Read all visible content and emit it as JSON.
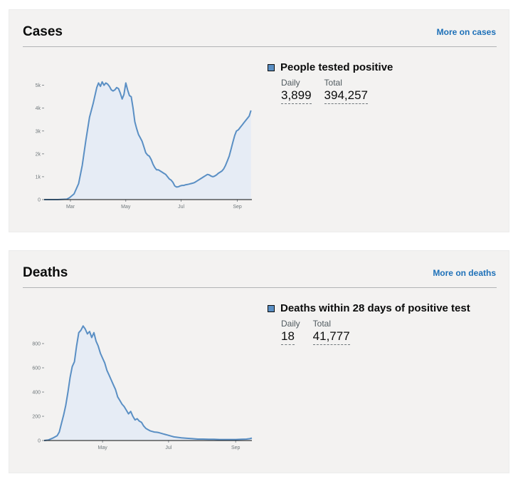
{
  "cases": {
    "title": "Cases",
    "more_link": "More on cases",
    "metric_title": "People tested positive",
    "daily_label": "Daily",
    "daily_value": "3,899",
    "total_label": "Total",
    "total_value": "394,257"
  },
  "deaths": {
    "title": "Deaths",
    "more_link": "More on deaths",
    "metric_title": "Deaths within 28 days of positive test",
    "daily_label": "Daily",
    "daily_value": "18",
    "total_label": "Total",
    "total_value": "41,777"
  },
  "colors": {
    "line": "#5a8fc4",
    "fill": "#e6ecf5",
    "axis": "#0b0c0c"
  },
  "chart_data": [
    {
      "type": "area",
      "title": "",
      "series": [
        {
          "name": "People tested positive"
        }
      ],
      "x_ticks": [
        {
          "label": "Mar",
          "day": 1
        },
        {
          "label": "May",
          "day": 62
        },
        {
          "label": "Jul",
          "day": 123
        },
        {
          "label": "Sep",
          "day": 185
        }
      ],
      "y_ticks": [
        {
          "label": "0",
          "value": 0
        },
        {
          "label": "1k",
          "value": 1000
        },
        {
          "label": "2k",
          "value": 2000
        },
        {
          "label": "3k",
          "value": 3000
        },
        {
          "label": "4k",
          "value": 4000
        },
        {
          "label": "5k",
          "value": 5000
        }
      ],
      "xlim": [
        -28,
        201
      ],
      "ylim": [
        0,
        5300
      ],
      "x": [
        -28,
        -13,
        -3,
        0,
        5,
        10,
        14,
        18,
        22,
        26,
        30,
        32,
        34,
        36,
        38,
        40,
        42,
        44,
        46,
        48,
        50,
        52,
        54,
        56,
        58,
        60,
        62,
        64,
        66,
        68,
        70,
        72,
        74,
        76,
        78,
        80,
        82,
        84,
        86,
        88,
        90,
        92,
        94,
        96,
        98,
        100,
        102,
        104,
        106,
        108,
        110,
        112,
        114,
        116,
        118,
        120,
        122,
        124,
        126,
        128,
        130,
        132,
        134,
        136,
        138,
        140,
        142,
        144,
        146,
        148,
        150,
        152,
        154,
        156,
        158,
        160,
        162,
        164,
        166,
        168,
        170,
        172,
        174,
        176,
        178,
        180,
        182,
        184,
        186,
        188,
        190,
        192,
        194,
        196,
        198,
        200
      ],
      "y": [
        0,
        0,
        20,
        80,
        250,
        700,
        1500,
        2600,
        3600,
        4200,
        4900,
        5100,
        4950,
        5150,
        5000,
        5100,
        5050,
        4950,
        4800,
        4750,
        4800,
        4900,
        4850,
        4650,
        4400,
        4600,
        5100,
        4800,
        4550,
        4500,
        4000,
        3400,
        3100,
        2850,
        2700,
        2550,
        2300,
        2050,
        1950,
        1900,
        1750,
        1550,
        1400,
        1300,
        1300,
        1250,
        1200,
        1150,
        1100,
        1000,
        900,
        850,
        750,
        600,
        550,
        560,
        600,
        620,
        620,
        650,
        660,
        680,
        700,
        720,
        750,
        800,
        850,
        900,
        950,
        1000,
        1050,
        1100,
        1080,
        1030,
        1000,
        1030,
        1080,
        1150,
        1200,
        1250,
        1350,
        1500,
        1700,
        1900,
        2200,
        2500,
        2800,
        3000,
        3050,
        3150,
        3250,
        3350,
        3450,
        3550,
        3650,
        3900
      ]
    },
    {
      "type": "area",
      "title": "",
      "series": [
        {
          "name": "Deaths within 28 days of positive test"
        }
      ],
      "x_ticks": [
        {
          "label": "May",
          "day": 62
        },
        {
          "label": "Jul",
          "day": 123
        },
        {
          "label": "Sep",
          "day": 185
        }
      ],
      "y_ticks": [
        {
          "label": "0",
          "value": 0
        },
        {
          "label": "200",
          "value": 200
        },
        {
          "label": "400",
          "value": 400
        },
        {
          "label": "600",
          "value": 600
        },
        {
          "label": "800",
          "value": 800
        }
      ],
      "xlim": [
        8,
        200
      ],
      "ylim": [
        0,
        1000
      ],
      "x": [
        8,
        12,
        16,
        20,
        22,
        24,
        26,
        28,
        30,
        32,
        34,
        36,
        38,
        40,
        42,
        44,
        46,
        48,
        50,
        52,
        54,
        56,
        58,
        60,
        62,
        64,
        66,
        68,
        70,
        72,
        74,
        76,
        78,
        80,
        82,
        84,
        86,
        88,
        90,
        92,
        94,
        96,
        98,
        100,
        102,
        104,
        106,
        108,
        110,
        112,
        114,
        116,
        118,
        120,
        122,
        124,
        126,
        128,
        130,
        135,
        140,
        145,
        150,
        155,
        160,
        165,
        170,
        175,
        180,
        185,
        190,
        195,
        198,
        200
      ],
      "y": [
        0,
        5,
        20,
        40,
        70,
        140,
        210,
        290,
        400,
        520,
        610,
        650,
        780,
        890,
        910,
        945,
        920,
        880,
        900,
        850,
        890,
        820,
        780,
        720,
        680,
        640,
        580,
        540,
        500,
        460,
        420,
        360,
        330,
        300,
        280,
        250,
        220,
        240,
        200,
        170,
        180,
        160,
        150,
        120,
        100,
        90,
        80,
        75,
        70,
        68,
        65,
        60,
        55,
        50,
        45,
        40,
        35,
        30,
        28,
        22,
        18,
        15,
        12,
        12,
        10,
        10,
        8,
        8,
        8,
        8,
        10,
        12,
        15,
        20
      ]
    }
  ]
}
